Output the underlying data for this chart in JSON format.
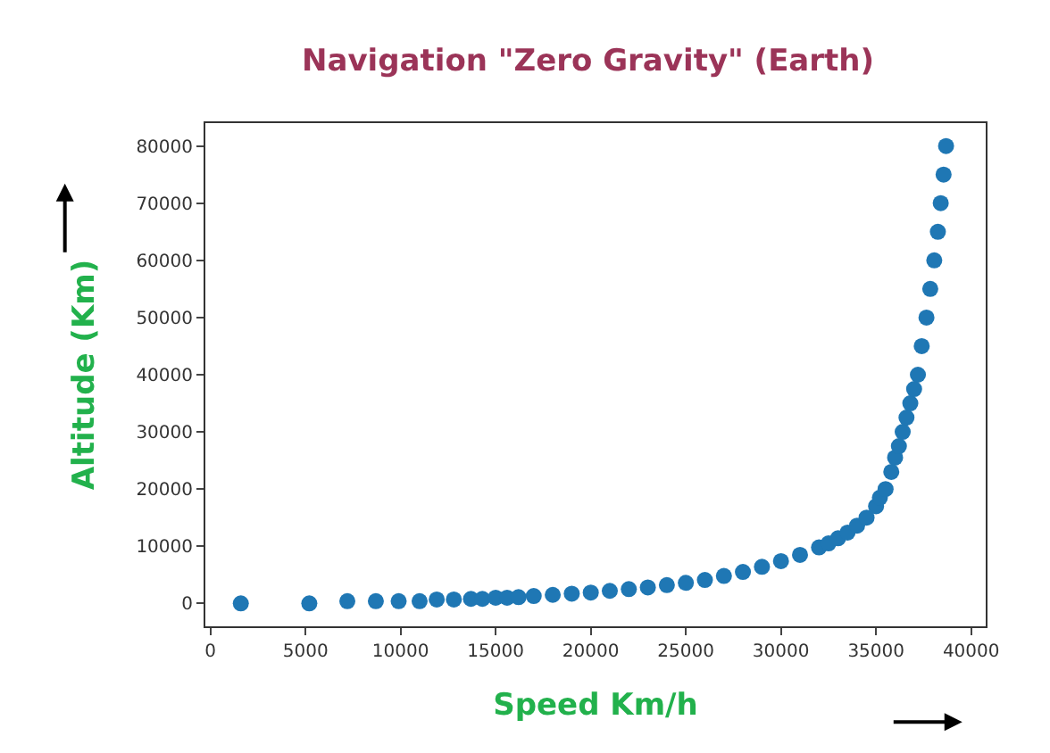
{
  "chart_data": {
    "type": "scatter",
    "title": "Navigation \"Zero Gravity\" (Earth)",
    "xlabel": "Speed Km/h",
    "ylabel": "Altitude (Km)",
    "x": [
      1600,
      5200,
      7200,
      8700,
      9900,
      11000,
      11900,
      12800,
      13700,
      14300,
      15000,
      15600,
      16200,
      17000,
      18000,
      19000,
      20000,
      21000,
      22000,
      23000,
      24000,
      25000,
      26000,
      27000,
      28000,
      29000,
      30000,
      31000,
      32000,
      32500,
      33000,
      33500,
      34000,
      34500,
      35000,
      35200,
      35500,
      35800,
      36000,
      36200,
      36400,
      36600,
      36800,
      37000,
      37200,
      37400,
      37650,
      37850,
      38060,
      38250,
      38400,
      38550,
      38680
    ],
    "series": [
      {
        "color": "#1f77b4",
        "values": [
          0,
          0,
          400,
          400,
          400,
          400,
          700,
          700,
          800,
          800,
          1000,
          1000,
          1100,
          1300,
          1500,
          1700,
          1900,
          2200,
          2500,
          2800,
          3200,
          3600,
          4100,
          4800,
          5500,
          6400,
          7400,
          8500,
          9800,
          10500,
          11400,
          12400,
          13600,
          15000,
          17000,
          18500,
          20000,
          23000,
          25500,
          27500,
          30000,
          32500,
          35000,
          37500,
          40000,
          45000,
          50000,
          55000,
          60000,
          65000,
          70000,
          75000,
          80000
        ]
      }
    ],
    "xlim": [
      -265,
      40765
    ],
    "ylim": [
      -4000,
      84000
    ],
    "xticks": [
      0,
      5000,
      10000,
      15000,
      20000,
      25000,
      30000,
      35000,
      40000
    ],
    "yticks": [
      0,
      10000,
      20000,
      30000,
      40000,
      50000,
      60000,
      70000,
      80000
    ],
    "marker": "circle"
  }
}
